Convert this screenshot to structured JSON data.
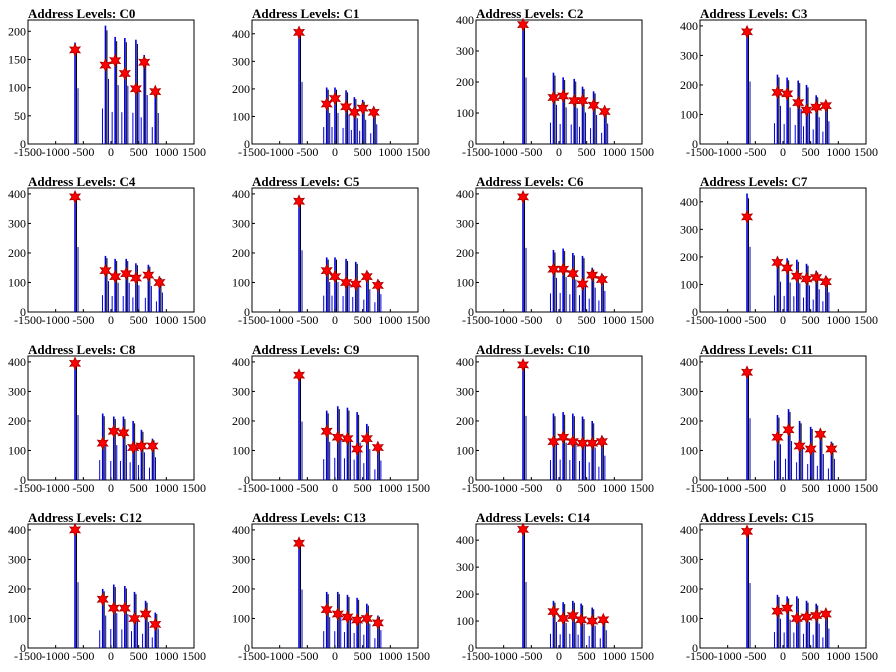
{
  "colors": {
    "histogram_black": "#000000",
    "histogram_blue": "#0000dd",
    "marker_fill": "#ff0000",
    "marker_stroke": "#aa0000"
  },
  "chart_data": [
    {
      "type": "bar",
      "title": "Address Levels: C0",
      "xlim": [
        -1500,
        1500
      ],
      "ylim": [
        0,
        220
      ],
      "xticks": [
        -1500,
        -1000,
        -500,
        0,
        500,
        1000,
        1500
      ],
      "yticks": [
        0,
        50,
        100,
        150,
        200
      ],
      "peaks": [
        {
          "x": -650,
          "y": 167
        },
        {
          "x": -100,
          "y": 140
        },
        {
          "x": 75,
          "y": 148
        },
        {
          "x": 250,
          "y": 125
        },
        {
          "x": 450,
          "y": 98
        },
        {
          "x": 600,
          "y": 145
        },
        {
          "x": 800,
          "y": 93
        }
      ],
      "bar_tops": [
        180,
        210,
        190,
        188,
        185,
        158,
        100
      ]
    },
    {
      "type": "bar",
      "title": "Address Levels: C1",
      "xlim": [
        -1500,
        1500
      ],
      "ylim": [
        0,
        450
      ],
      "xticks": [
        -1500,
        -1000,
        -500,
        0,
        500,
        1000,
        1500
      ],
      "yticks": [
        0,
        100,
        200,
        300,
        400
      ],
      "peaks": [
        {
          "x": -650,
          "y": 405
        },
        {
          "x": -150,
          "y": 145
        },
        {
          "x": 0,
          "y": 165
        },
        {
          "x": 200,
          "y": 135
        },
        {
          "x": 350,
          "y": 115
        },
        {
          "x": 500,
          "y": 130
        },
        {
          "x": 700,
          "y": 115
        }
      ],
      "bar_tops": [
        410,
        205,
        205,
        195,
        170,
        160,
        130
      ]
    },
    {
      "type": "bar",
      "title": "Address Levels: C2",
      "xlim": [
        -1500,
        1500
      ],
      "ylim": [
        0,
        400
      ],
      "xticks": [
        -1500,
        -1000,
        -500,
        0,
        500,
        1000,
        1500
      ],
      "yticks": [
        0,
        100,
        200,
        300,
        400
      ],
      "peaks": [
        {
          "x": -650,
          "y": 385
        },
        {
          "x": -100,
          "y": 150
        },
        {
          "x": 75,
          "y": 155
        },
        {
          "x": 275,
          "y": 140
        },
        {
          "x": 425,
          "y": 140
        },
        {
          "x": 625,
          "y": 125
        },
        {
          "x": 825,
          "y": 105
        }
      ],
      "bar_tops": [
        390,
        230,
        215,
        210,
        185,
        170,
        120
      ]
    },
    {
      "type": "bar",
      "title": "Address Levels: C3",
      "xlim": [
        -1500,
        1500
      ],
      "ylim": [
        0,
        420
      ],
      "xticks": [
        -1500,
        -1000,
        -500,
        0,
        500,
        1000,
        1500
      ],
      "yticks": [
        0,
        100,
        200,
        300,
        400
      ],
      "peaks": [
        {
          "x": -650,
          "y": 380
        },
        {
          "x": -100,
          "y": 175
        },
        {
          "x": 75,
          "y": 170
        },
        {
          "x": 275,
          "y": 140
        },
        {
          "x": 425,
          "y": 115
        },
        {
          "x": 600,
          "y": 125
        },
        {
          "x": 775,
          "y": 130
        }
      ],
      "bar_tops": [
        385,
        235,
        225,
        215,
        200,
        165,
        140
      ]
    },
    {
      "type": "bar",
      "title": "Address Levels: C4",
      "xlim": [
        -1500,
        1500
      ],
      "ylim": [
        0,
        420
      ],
      "xticks": [
        -1500,
        -1000,
        -500,
        0,
        500,
        1000,
        1500
      ],
      "yticks": [
        0,
        100,
        200,
        300,
        400
      ],
      "peaks": [
        {
          "x": -650,
          "y": 390
        },
        {
          "x": -100,
          "y": 140
        },
        {
          "x": 75,
          "y": 120
        },
        {
          "x": 275,
          "y": 130
        },
        {
          "x": 450,
          "y": 115
        },
        {
          "x": 675,
          "y": 125
        },
        {
          "x": 875,
          "y": 100
        }
      ],
      "bar_tops": [
        400,
        190,
        180,
        180,
        165,
        160,
        120
      ]
    },
    {
      "type": "bar",
      "title": "Address Levels: C5",
      "xlim": [
        -1500,
        1500
      ],
      "ylim": [
        0,
        420
      ],
      "xticks": [
        -1500,
        -1000,
        -500,
        0,
        500,
        1000,
        1500
      ],
      "yticks": [
        0,
        100,
        200,
        300,
        400
      ],
      "peaks": [
        {
          "x": -650,
          "y": 375
        },
        {
          "x": -150,
          "y": 140
        },
        {
          "x": 0,
          "y": 120
        },
        {
          "x": 200,
          "y": 100
        },
        {
          "x": 375,
          "y": 95
        },
        {
          "x": 575,
          "y": 120
        },
        {
          "x": 775,
          "y": 90
        }
      ],
      "bar_tops": [
        380,
        185,
        185,
        180,
        170,
        140,
        110
      ]
    },
    {
      "type": "bar",
      "title": "Address Levels: C6",
      "xlim": [
        -1500,
        1500
      ],
      "ylim": [
        0,
        420
      ],
      "xticks": [
        -1500,
        -1000,
        -500,
        0,
        500,
        1000,
        1500
      ],
      "yticks": [
        0,
        100,
        200,
        300,
        400
      ],
      "peaks": [
        {
          "x": -650,
          "y": 390
        },
        {
          "x": -100,
          "y": 145
        },
        {
          "x": 75,
          "y": 145
        },
        {
          "x": 250,
          "y": 130
        },
        {
          "x": 425,
          "y": 95
        },
        {
          "x": 600,
          "y": 125
        },
        {
          "x": 775,
          "y": 110
        }
      ],
      "bar_tops": [
        395,
        210,
        215,
        200,
        190,
        150,
        130
      ]
    },
    {
      "type": "bar",
      "title": "Address Levels: C7",
      "xlim": [
        -1500,
        1500
      ],
      "ylim": [
        0,
        450
      ],
      "xticks": [
        -1500,
        -1000,
        -500,
        0,
        500,
        1000,
        1500
      ],
      "yticks": [
        0,
        100,
        200,
        300,
        400
      ],
      "peaks": [
        {
          "x": -650,
          "y": 345
        },
        {
          "x": -100,
          "y": 180
        },
        {
          "x": 75,
          "y": 160
        },
        {
          "x": 250,
          "y": 130
        },
        {
          "x": 425,
          "y": 120
        },
        {
          "x": 600,
          "y": 125
        },
        {
          "x": 775,
          "y": 110
        }
      ],
      "bar_tops": [
        430,
        200,
        195,
        190,
        175,
        150,
        130
      ]
    },
    {
      "type": "bar",
      "title": "Address Levels: C8",
      "xlim": [
        -1500,
        1500
      ],
      "ylim": [
        0,
        420
      ],
      "xticks": [
        -1500,
        -1000,
        -500,
        0,
        500,
        1000,
        1500
      ],
      "yticks": [
        0,
        100,
        200,
        300,
        400
      ],
      "peaks": [
        {
          "x": -650,
          "y": 395
        },
        {
          "x": -150,
          "y": 125
        },
        {
          "x": 50,
          "y": 165
        },
        {
          "x": 225,
          "y": 160
        },
        {
          "x": 400,
          "y": 110
        },
        {
          "x": 550,
          "y": 115
        },
        {
          "x": 750,
          "y": 115
        }
      ],
      "bar_tops": [
        400,
        225,
        215,
        215,
        200,
        170,
        140
      ]
    },
    {
      "type": "bar",
      "title": "Address Levels: C9",
      "xlim": [
        -1500,
        1500
      ],
      "ylim": [
        0,
        420
      ],
      "xticks": [
        -1500,
        -1000,
        -500,
        0,
        500,
        1000,
        1500
      ],
      "yticks": [
        0,
        100,
        200,
        300,
        400
      ],
      "peaks": [
        {
          "x": -650,
          "y": 355
        },
        {
          "x": -150,
          "y": 165
        },
        {
          "x": 50,
          "y": 145
        },
        {
          "x": 225,
          "y": 140
        },
        {
          "x": 400,
          "y": 105
        },
        {
          "x": 575,
          "y": 140
        },
        {
          "x": 775,
          "y": 110
        }
      ],
      "bar_tops": [
        360,
        235,
        250,
        245,
        230,
        190,
        120
      ]
    },
    {
      "type": "bar",
      "title": "Address Levels: C10",
      "xlim": [
        -1500,
        1500
      ],
      "ylim": [
        0,
        420
      ],
      "xticks": [
        -1500,
        -1000,
        -500,
        0,
        500,
        1000,
        1500
      ],
      "yticks": [
        0,
        100,
        200,
        300,
        400
      ],
      "peaks": [
        {
          "x": -650,
          "y": 390
        },
        {
          "x": -100,
          "y": 130
        },
        {
          "x": 75,
          "y": 145
        },
        {
          "x": 250,
          "y": 130
        },
        {
          "x": 425,
          "y": 125
        },
        {
          "x": 600,
          "y": 125
        },
        {
          "x": 775,
          "y": 130
        }
      ],
      "bar_tops": [
        395,
        225,
        230,
        225,
        215,
        200,
        150
      ]
    },
    {
      "type": "bar",
      "title": "Address Levels: C11",
      "xlim": [
        -1500,
        1500
      ],
      "ylim": [
        0,
        420
      ],
      "xticks": [
        -1500,
        -1000,
        -500,
        0,
        500,
        1000,
        1500
      ],
      "yticks": [
        0,
        100,
        200,
        300,
        400
      ],
      "peaks": [
        {
          "x": -650,
          "y": 365
        },
        {
          "x": -100,
          "y": 145
        },
        {
          "x": 100,
          "y": 170
        },
        {
          "x": 300,
          "y": 115
        },
        {
          "x": 500,
          "y": 105
        },
        {
          "x": 675,
          "y": 155
        },
        {
          "x": 875,
          "y": 105
        }
      ],
      "bar_tops": [
        380,
        220,
        240,
        200,
        180,
        160,
        130
      ]
    },
    {
      "type": "bar",
      "title": "Address Levels: C12",
      "xlim": [
        -1500,
        1500
      ],
      "ylim": [
        0,
        420
      ],
      "xticks": [
        -1500,
        -1000,
        -500,
        0,
        500,
        1000,
        1500
      ],
      "yticks": [
        0,
        100,
        200,
        300,
        400
      ],
      "peaks": [
        {
          "x": -650,
          "y": 400
        },
        {
          "x": -150,
          "y": 165
        },
        {
          "x": 50,
          "y": 135
        },
        {
          "x": 250,
          "y": 135
        },
        {
          "x": 425,
          "y": 100
        },
        {
          "x": 625,
          "y": 115
        },
        {
          "x": 800,
          "y": 80
        }
      ],
      "bar_tops": [
        405,
        200,
        215,
        210,
        190,
        160,
        120
      ]
    },
    {
      "type": "bar",
      "title": "Address Levels: C13",
      "xlim": [
        -1500,
        1500
      ],
      "ylim": [
        0,
        420
      ],
      "xticks": [
        -1500,
        -1000,
        -500,
        0,
        500,
        1000,
        1500
      ],
      "yticks": [
        0,
        100,
        200,
        300,
        400
      ],
      "peaks": [
        {
          "x": -650,
          "y": 355
        },
        {
          "x": -150,
          "y": 130
        },
        {
          "x": 50,
          "y": 115
        },
        {
          "x": 225,
          "y": 105
        },
        {
          "x": 400,
          "y": 95
        },
        {
          "x": 575,
          "y": 100
        },
        {
          "x": 775,
          "y": 85
        }
      ],
      "bar_tops": [
        360,
        190,
        190,
        180,
        170,
        150,
        110
      ]
    },
    {
      "type": "bar",
      "title": "Address Levels: C14",
      "xlim": [
        -1500,
        1500
      ],
      "ylim": [
        0,
        460
      ],
      "xticks": [
        -1500,
        -1000,
        -500,
        0,
        500,
        1000,
        1500
      ],
      "yticks": [
        0,
        100,
        200,
        300,
        400
      ],
      "peaks": [
        {
          "x": -650,
          "y": 440
        },
        {
          "x": -100,
          "y": 135
        },
        {
          "x": 75,
          "y": 110
        },
        {
          "x": 250,
          "y": 120
        },
        {
          "x": 400,
          "y": 105
        },
        {
          "x": 600,
          "y": 100
        },
        {
          "x": 800,
          "y": 105
        }
      ],
      "bar_tops": [
        445,
        175,
        170,
        175,
        165,
        150,
        120
      ]
    },
    {
      "type": "bar",
      "title": "Address Levels: C15",
      "xlim": [
        -1500,
        1500
      ],
      "ylim": [
        0,
        420
      ],
      "xticks": [
        -1500,
        -1000,
        -500,
        0,
        500,
        1000,
        1500
      ],
      "yticks": [
        0,
        100,
        200,
        300,
        400
      ],
      "peaks": [
        {
          "x": -650,
          "y": 395
        },
        {
          "x": -100,
          "y": 125
        },
        {
          "x": 75,
          "y": 135
        },
        {
          "x": 250,
          "y": 100
        },
        {
          "x": 425,
          "y": 105
        },
        {
          "x": 600,
          "y": 110
        },
        {
          "x": 775,
          "y": 115
        }
      ],
      "bar_tops": [
        400,
        180,
        175,
        175,
        160,
        150,
        120
      ]
    }
  ]
}
